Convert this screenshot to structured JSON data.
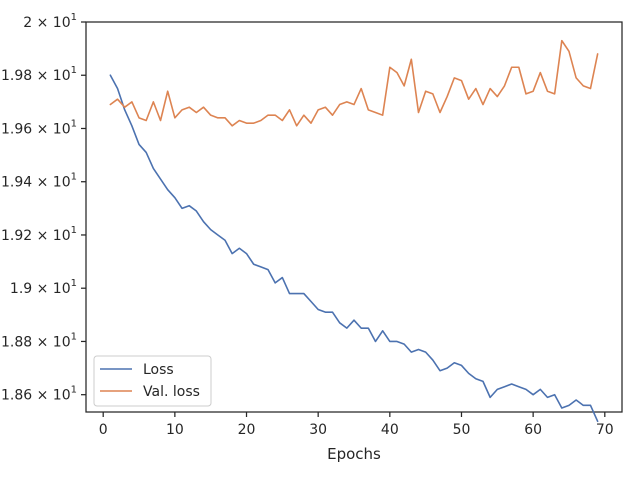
{
  "chart_data": {
    "type": "line",
    "title": "",
    "xlabel": "Epochs",
    "ylabel": "",
    "xlim": [
      -2.4,
      72.4
    ],
    "ylim": [
      18.535,
      20.0
    ],
    "x_ticks": [
      0,
      10,
      20,
      30,
      40,
      50,
      60,
      70
    ],
    "x_tick_labels": [
      "0",
      "10",
      "20",
      "30",
      "40",
      "50",
      "60",
      "70"
    ],
    "y_ticks": [
      18.6,
      18.8,
      19.0,
      19.2,
      19.4,
      19.6,
      19.8,
      20.0
    ],
    "y_tick_labels": [
      {
        "mant": "1.86",
        "exp": "1"
      },
      {
        "mant": "1.88",
        "exp": "1"
      },
      {
        "mant": "1.9",
        "exp": "1"
      },
      {
        "mant": "1.92",
        "exp": "1"
      },
      {
        "mant": "1.94",
        "exp": "1"
      },
      {
        "mant": "1.96",
        "exp": "1"
      },
      {
        "mant": "1.98",
        "exp": "1"
      },
      {
        "mant": "2",
        "exp": "1"
      }
    ],
    "grid": false,
    "legend_position": "lower-left",
    "x": [
      1,
      2,
      3,
      4,
      5,
      6,
      7,
      8,
      9,
      10,
      11,
      12,
      13,
      14,
      15,
      16,
      17,
      18,
      19,
      20,
      21,
      22,
      23,
      24,
      25,
      26,
      27,
      28,
      29,
      30,
      31,
      32,
      33,
      34,
      35,
      36,
      37,
      38,
      39,
      40,
      41,
      42,
      43,
      44,
      45,
      46,
      47,
      48,
      49,
      50,
      51,
      52,
      53,
      54,
      55,
      56,
      57,
      58,
      59,
      60,
      61,
      62,
      63,
      64,
      65,
      66,
      67,
      68,
      69
    ],
    "series": [
      {
        "name": "Loss",
        "color": "#4c72b0",
        "values": [
          19.8,
          19.75,
          19.67,
          19.61,
          19.54,
          19.51,
          19.45,
          19.41,
          19.37,
          19.34,
          19.3,
          19.31,
          19.29,
          19.25,
          19.22,
          19.2,
          19.18,
          19.13,
          19.15,
          19.13,
          19.09,
          19.08,
          19.07,
          19.02,
          19.04,
          18.98,
          18.98,
          18.98,
          18.95,
          18.92,
          18.91,
          18.91,
          18.87,
          18.85,
          18.88,
          18.85,
          18.85,
          18.8,
          18.84,
          18.8,
          18.8,
          18.79,
          18.76,
          18.77,
          18.76,
          18.73,
          18.69,
          18.7,
          18.72,
          18.71,
          18.68,
          18.66,
          18.65,
          18.59,
          18.62,
          18.63,
          18.64,
          18.63,
          18.62,
          18.6,
          18.62,
          18.59,
          18.6,
          18.55,
          18.56,
          18.58,
          18.56,
          18.56,
          18.5
        ]
      },
      {
        "name": "Val. loss",
        "color": "#dd8452",
        "values": [
          19.69,
          19.71,
          19.68,
          19.7,
          19.64,
          19.63,
          19.7,
          19.63,
          19.74,
          19.64,
          19.67,
          19.68,
          19.66,
          19.68,
          19.65,
          19.64,
          19.64,
          19.61,
          19.63,
          19.62,
          19.62,
          19.63,
          19.65,
          19.65,
          19.63,
          19.67,
          19.61,
          19.65,
          19.62,
          19.67,
          19.68,
          19.65,
          19.69,
          19.7,
          19.69,
          19.75,
          19.67,
          19.66,
          19.65,
          19.83,
          19.81,
          19.76,
          19.86,
          19.66,
          19.74,
          19.73,
          19.66,
          19.72,
          19.79,
          19.78,
          19.71,
          19.75,
          19.69,
          19.75,
          19.72,
          19.76,
          19.83,
          19.83,
          19.73,
          19.74,
          19.81,
          19.74,
          19.73,
          19.93,
          19.89,
          19.79,
          19.76,
          19.75,
          19.88
        ]
      }
    ]
  }
}
